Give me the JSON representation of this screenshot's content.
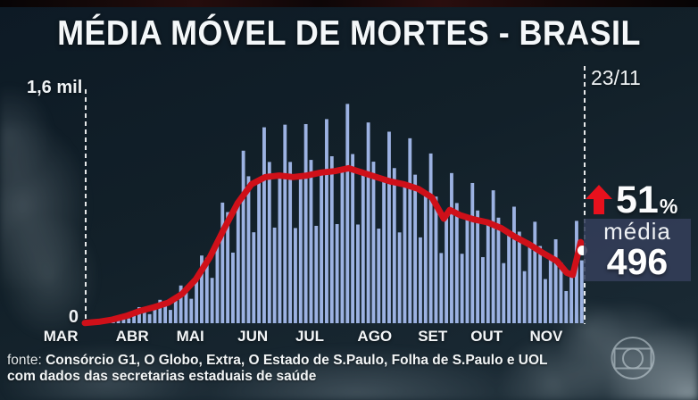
{
  "title": "MÉDIA MÓVEL DE MORTES - BRASIL",
  "chart": {
    "y_top_label": "1,6 mil",
    "y_zero_label": "0",
    "date_label": "23/11",
    "months": [
      {
        "label": "MAR",
        "x": -0.048
      },
      {
        "label": "ABR",
        "x": 0.095
      },
      {
        "label": "MAI",
        "x": 0.211
      },
      {
        "label": "JUN",
        "x": 0.336
      },
      {
        "label": "JUL",
        "x": 0.45
      },
      {
        "label": "AGO",
        "x": 0.58
      },
      {
        "label": "SET",
        "x": 0.696
      },
      {
        "label": "OUT",
        "x": 0.804
      },
      {
        "label": "NOV",
        "x": 0.923
      }
    ]
  },
  "stats": {
    "trend": "up",
    "pct_value": "51",
    "pct_sign": "%",
    "media_label": "média",
    "media_value": "496"
  },
  "footer": {
    "prefix": "fonte:",
    "sources": " Consórcio G1, O Globo, Extra, O Estado de S.Paulo, Folha de S.Paulo e UOL",
    "line2": "com dados das secretarias estaduais de saúde"
  },
  "colors": {
    "bar": "#9cb2e2",
    "ma_line": "#cf1019",
    "arrow": "#e8111d",
    "dot": "#ffffff",
    "media_box_bg": "rgba(52,62,90,0.87)",
    "background_navy": "#13212c",
    "text": "#f4f7f9"
  },
  "chart_data": {
    "type": "bar+line",
    "title": "MÉDIA MÓVEL DE MORTES - BRASIL",
    "x_months": [
      "MAR",
      "ABR",
      "MAI",
      "JUN",
      "JUL",
      "AGO",
      "SET",
      "OUT",
      "NOV"
    ],
    "x_span_days": 252,
    "x_range": [
      "meados de MAR",
      "23/11"
    ],
    "y_axis": {
      "min": 0,
      "max": 1600,
      "top_label": "1,6 mil",
      "zero_label": "0"
    },
    "end_marker": {
      "date": "23/11",
      "moving_average": 496,
      "change_pct": "+51%"
    },
    "bars": {
      "label": "mortes por dia",
      "values": [
        2,
        5,
        11,
        13,
        12,
        23,
        43,
        47,
        33,
        65,
        110,
        98,
        62,
        107,
        160,
        144,
        91,
        166,
        258,
        235,
        167,
        300,
        463,
        448,
        310,
        531,
        825,
        760,
        483,
        820,
        1180,
        1005,
        622,
        979,
        1340,
        1103,
        654,
        1010,
        1358,
        1103,
        651,
        1006,
        1362,
        1117,
        666,
        1030,
        1396,
        1142,
        678,
        1051,
        1500,
        1157,
        675,
        1030,
        1373,
        1105,
        647,
        983,
        1310,
        1061,
        621,
        950,
        1265,
        1016,
        587,
        886,
        1161,
        866,
        480,
        755,
        1027,
        822,
        475,
        719,
        959,
        771,
        452,
        687,
        909,
        722,
        411,
        607,
        797,
        626,
        356,
        533,
        694,
        528,
        302,
        441,
        574,
        415,
        220,
        325,
        700,
        430
      ]
    },
    "ma_line": {
      "label": "média móvel de mortes",
      "points_day_value": [
        [
          0,
          2
        ],
        [
          7,
          10
        ],
        [
          14,
          25
        ],
        [
          21,
          50
        ],
        [
          28,
          85
        ],
        [
          35,
          110
        ],
        [
          42,
          140
        ],
        [
          49,
          200
        ],
        [
          56,
          300
        ],
        [
          63,
          450
        ],
        [
          70,
          640
        ],
        [
          77,
          820
        ],
        [
          84,
          950
        ],
        [
          91,
          1000
        ],
        [
          98,
          1010
        ],
        [
          105,
          1000
        ],
        [
          112,
          1010
        ],
        [
          119,
          1030
        ],
        [
          126,
          1040
        ],
        [
          133,
          1060
        ],
        [
          140,
          1030
        ],
        [
          147,
          1000
        ],
        [
          154,
          970
        ],
        [
          161,
          950
        ],
        [
          168,
          920
        ],
        [
          175,
          860
        ],
        [
          181,
          715
        ],
        [
          184,
          775
        ],
        [
          189,
          740
        ],
        [
          196,
          710
        ],
        [
          203,
          690
        ],
        [
          210,
          650
        ],
        [
          217,
          590
        ],
        [
          224,
          540
        ],
        [
          231,
          480
        ],
        [
          238,
          425
        ],
        [
          243,
          345
        ],
        [
          246,
          330
        ],
        [
          248,
          440
        ],
        [
          250,
          555
        ],
        [
          252,
          496
        ]
      ]
    }
  }
}
